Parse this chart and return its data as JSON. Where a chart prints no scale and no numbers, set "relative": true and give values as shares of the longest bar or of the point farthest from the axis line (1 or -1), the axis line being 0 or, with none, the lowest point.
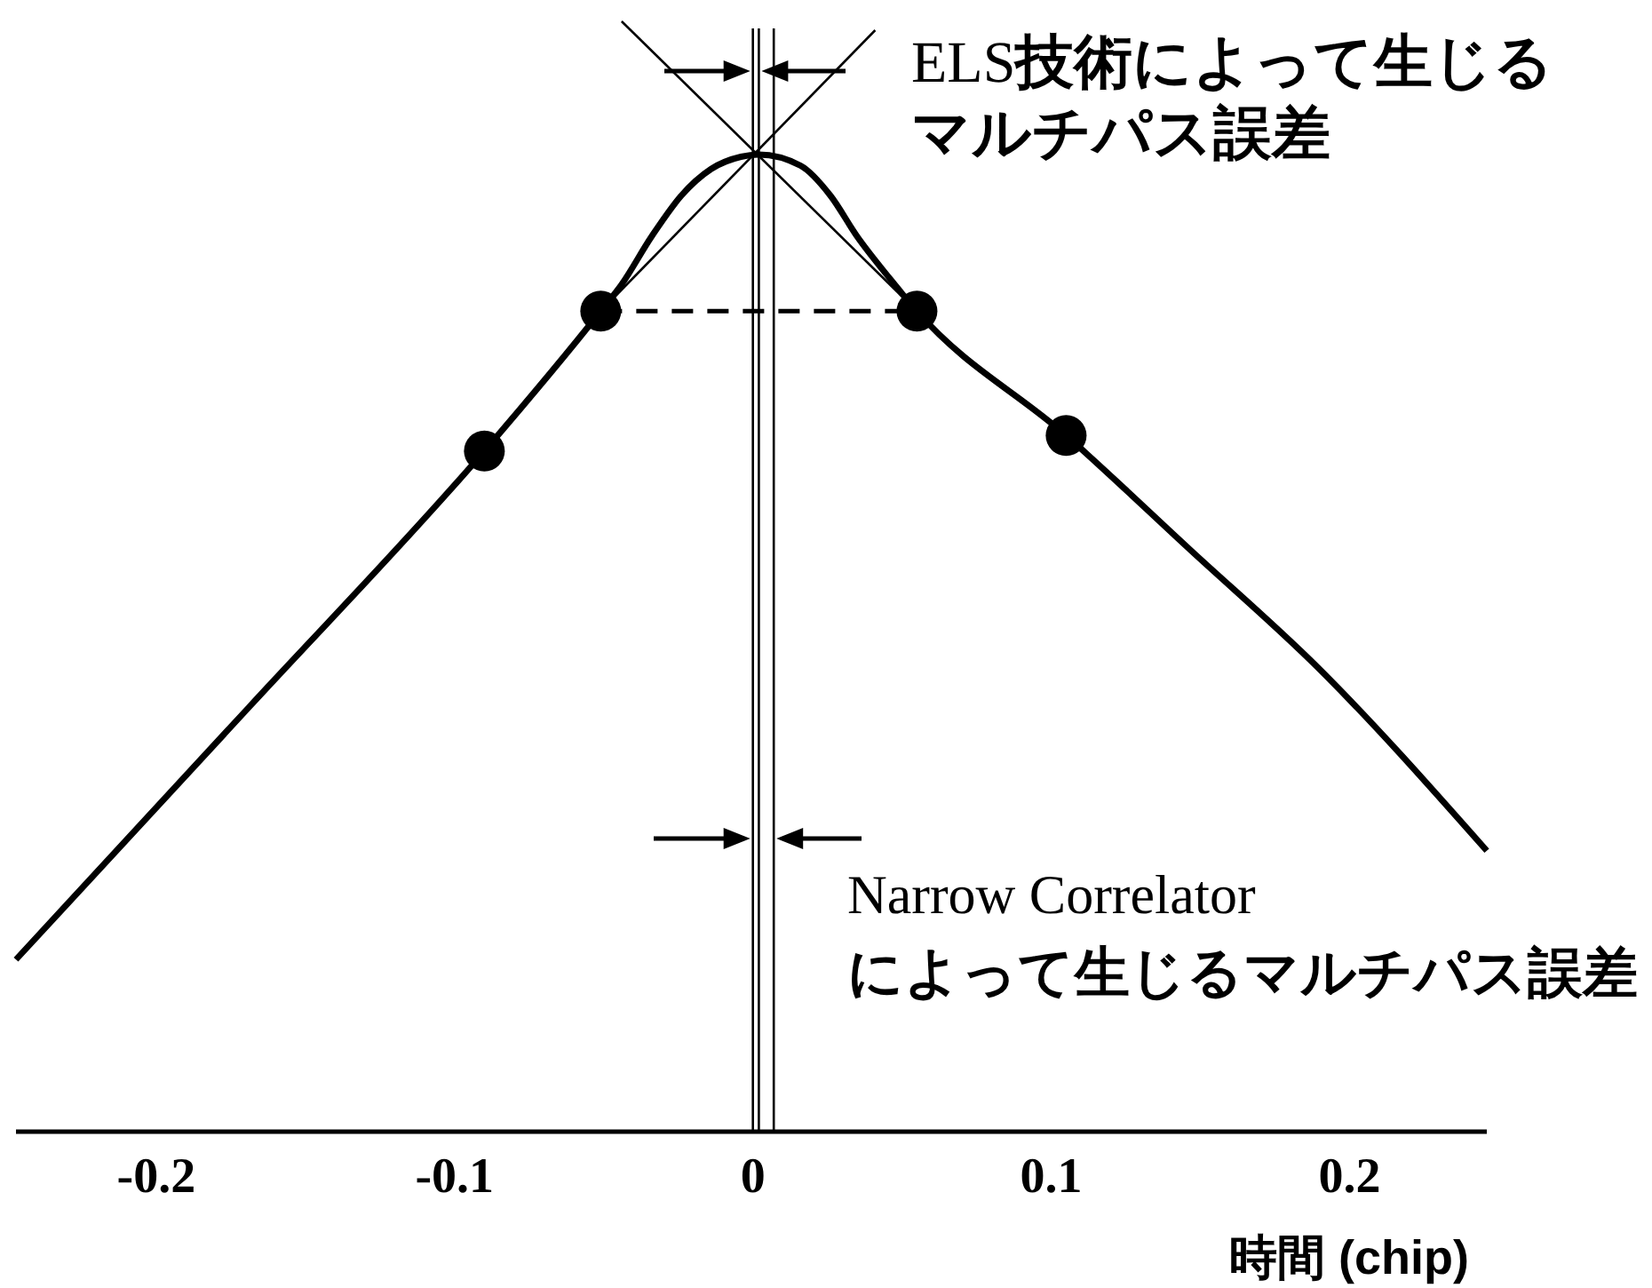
{
  "chart_data": {
    "type": "line",
    "relative": true,
    "xlabel": "時間 (chip)",
    "xlim": [
      -0.247,
      0.246
    ],
    "xticks": [
      -0.2,
      -0.1,
      0,
      0.1,
      0.2
    ],
    "annotations": [
      "ELS技術によって生じる",
      "マルチパス誤差",
      "Narrow Correlator",
      "によって生じるマルチパス誤差"
    ],
    "ref_lines": [
      {
        "axis": "x",
        "value": 0,
        "color": "#000000"
      },
      {
        "axis": "x",
        "value": 0.002,
        "color": "#000000"
      },
      {
        "axis": "x",
        "value": 0.007,
        "color": "#000000"
      }
    ],
    "series": [
      {
        "color": "#000000",
        "x": [
          -0.247,
          -0.169,
          -0.09,
          -0.051,
          -0.044,
          -0.034,
          -0.024,
          -0.014,
          -0.004,
          0.002,
          0.016,
          0.026,
          0.035,
          0.046,
          0.055,
          0.105,
          0.147,
          0.189,
          0.246
        ],
        "values": [
          0.155,
          0.382,
          0.613,
          0.739,
          0.763,
          0.806,
          0.843,
          0.867,
          0.878,
          0.88,
          0.87,
          0.843,
          0.806,
          0.768,
          0.739,
          0.627,
          0.523,
          0.419,
          0.253
        ]
      },
      {
        "color": "#000000",
        "x": [
          -0.044,
          0.055
        ],
        "values": [
          1,
          0.739
        ]
      },
      {
        "color": "#000000",
        "x": [
          -0.051,
          0.041
        ],
        "values": [
          0.739,
          0.992
        ]
      },
      {
        "color": "#000000",
        "line_style": "dashed",
        "x": [
          -0.051,
          0.055
        ],
        "values": [
          0.739,
          0.739
        ]
      },
      {
        "type": "scatter",
        "color": "#000000",
        "marker": "circle",
        "x": [
          -0.09,
          -0.051,
          0.055,
          0.105
        ],
        "values": [
          0.613,
          0.739,
          0.739,
          0.627
        ]
      }
    ]
  }
}
